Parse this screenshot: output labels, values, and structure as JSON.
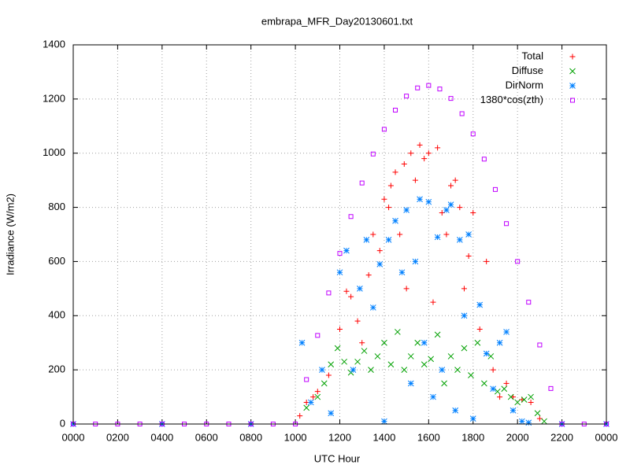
{
  "chart_data": {
    "type": "scatter",
    "title": "embrapa_MFR_Day20130601.txt",
    "x_label": "UTC Hour",
    "y_label": "Irradiance (W/m2)",
    "xlim": [
      0,
      24
    ],
    "ylim": [
      0,
      1400
    ],
    "xticks": [
      {
        "value": 0,
        "label": "0000"
      },
      {
        "value": 2,
        "label": "0200"
      },
      {
        "value": 4,
        "label": "0400"
      },
      {
        "value": 6,
        "label": "0600"
      },
      {
        "value": 8,
        "label": "0800"
      },
      {
        "value": 10,
        "label": "1000"
      },
      {
        "value": 12,
        "label": "1200"
      },
      {
        "value": 14,
        "label": "1400"
      },
      {
        "value": 16,
        "label": "1600"
      },
      {
        "value": 18,
        "label": "1800"
      },
      {
        "value": 20,
        "label": "2000"
      },
      {
        "value": 22,
        "label": "2200"
      },
      {
        "value": 24,
        "label": "0000"
      }
    ],
    "yticks": [
      0,
      200,
      400,
      600,
      800,
      1000,
      1200,
      1400
    ],
    "grid": true,
    "legend": "top-right",
    "series": [
      {
        "name": "Total",
        "color": "#ff0000",
        "marker": "plus",
        "x": [
          10.2,
          10.5,
          10.8,
          11.0,
          11.5,
          12.0,
          12.3,
          12.5,
          12.8,
          13.0,
          13.3,
          13.5,
          13.8,
          14.0,
          14.2,
          14.3,
          14.5,
          14.7,
          14.9,
          15.0,
          15.2,
          15.4,
          15.6,
          15.8,
          16.0,
          16.2,
          16.4,
          16.6,
          16.8,
          17.0,
          17.2,
          17.4,
          17.6,
          17.8,
          18.0,
          18.3,
          18.6,
          18.9,
          19.2,
          19.5,
          19.8,
          20.2,
          20.6,
          21.0
        ],
        "values": [
          30,
          80,
          100,
          120,
          180,
          350,
          490,
          470,
          380,
          300,
          550,
          700,
          640,
          830,
          800,
          880,
          930,
          700,
          960,
          500,
          1000,
          900,
          1030,
          980,
          1000,
          450,
          1020,
          780,
          700,
          880,
          900,
          800,
          500,
          620,
          780,
          350,
          600,
          200,
          100,
          150,
          100,
          90,
          80,
          20
        ]
      },
      {
        "name": "Diffuse",
        "color": "#00a000",
        "marker": "cross",
        "x": [
          10.5,
          11.0,
          11.3,
          11.6,
          11.9,
          12.2,
          12.5,
          12.8,
          13.1,
          13.4,
          13.7,
          14.0,
          14.3,
          14.6,
          14.9,
          15.2,
          15.5,
          15.8,
          16.1,
          16.4,
          16.7,
          17.0,
          17.3,
          17.6,
          17.9,
          18.2,
          18.5,
          18.8,
          19.1,
          19.4,
          19.7,
          20.0,
          20.3,
          20.6,
          20.9,
          21.2
        ],
        "values": [
          60,
          100,
          150,
          220,
          280,
          230,
          190,
          230,
          270,
          200,
          250,
          300,
          220,
          340,
          200,
          250,
          300,
          220,
          240,
          330,
          150,
          250,
          200,
          280,
          180,
          300,
          150,
          250,
          120,
          130,
          100,
          80,
          90,
          100,
          40,
          10
        ]
      },
      {
        "name": "DirNorm",
        "color": "#0080ff",
        "marker": "star",
        "x": [
          0,
          4,
          8,
          10.3,
          10.7,
          11.2,
          11.6,
          12.0,
          12.3,
          12.6,
          12.9,
          13.2,
          13.5,
          13.8,
          14.0,
          14.2,
          14.5,
          14.8,
          15.0,
          15.2,
          15.4,
          15.6,
          15.8,
          16.0,
          16.2,
          16.4,
          16.6,
          16.8,
          17.0,
          17.2,
          17.4,
          17.6,
          17.8,
          18.0,
          18.3,
          18.6,
          18.9,
          19.2,
          19.5,
          19.8,
          20.2,
          20.5,
          22,
          24
        ],
        "values": [
          0,
          0,
          0,
          300,
          80,
          200,
          40,
          560,
          640,
          200,
          500,
          680,
          430,
          590,
          10,
          680,
          750,
          560,
          790,
          150,
          600,
          830,
          300,
          820,
          100,
          690,
          200,
          790,
          810,
          50,
          680,
          400,
          700,
          20,
          440,
          260,
          130,
          300,
          340,
          50,
          10,
          5,
          0,
          0
        ]
      },
      {
        "name": "1380*cos(zth)",
        "color": "#c000ff",
        "marker": "square",
        "x": [
          0,
          1,
          2,
          3,
          4,
          5,
          6,
          7,
          8,
          9,
          10,
          10.5,
          11,
          11.5,
          12,
          12.5,
          13,
          13.5,
          14,
          14.5,
          15,
          15.5,
          16,
          16.5,
          17,
          17.5,
          18,
          18.5,
          19,
          19.5,
          20,
          20.5,
          21,
          21.5,
          22,
          23,
          24
        ],
        "values": [
          0,
          0,
          0,
          0,
          0,
          0,
          0,
          0,
          0,
          0,
          0,
          164,
          327,
          484,
          630,
          766,
          890,
          997,
          1088,
          1159,
          1211,
          1241,
          1250,
          1237,
          1202,
          1146,
          1071,
          978,
          866,
          740,
          600,
          450,
          292,
          131,
          0,
          0,
          0
        ]
      }
    ]
  }
}
